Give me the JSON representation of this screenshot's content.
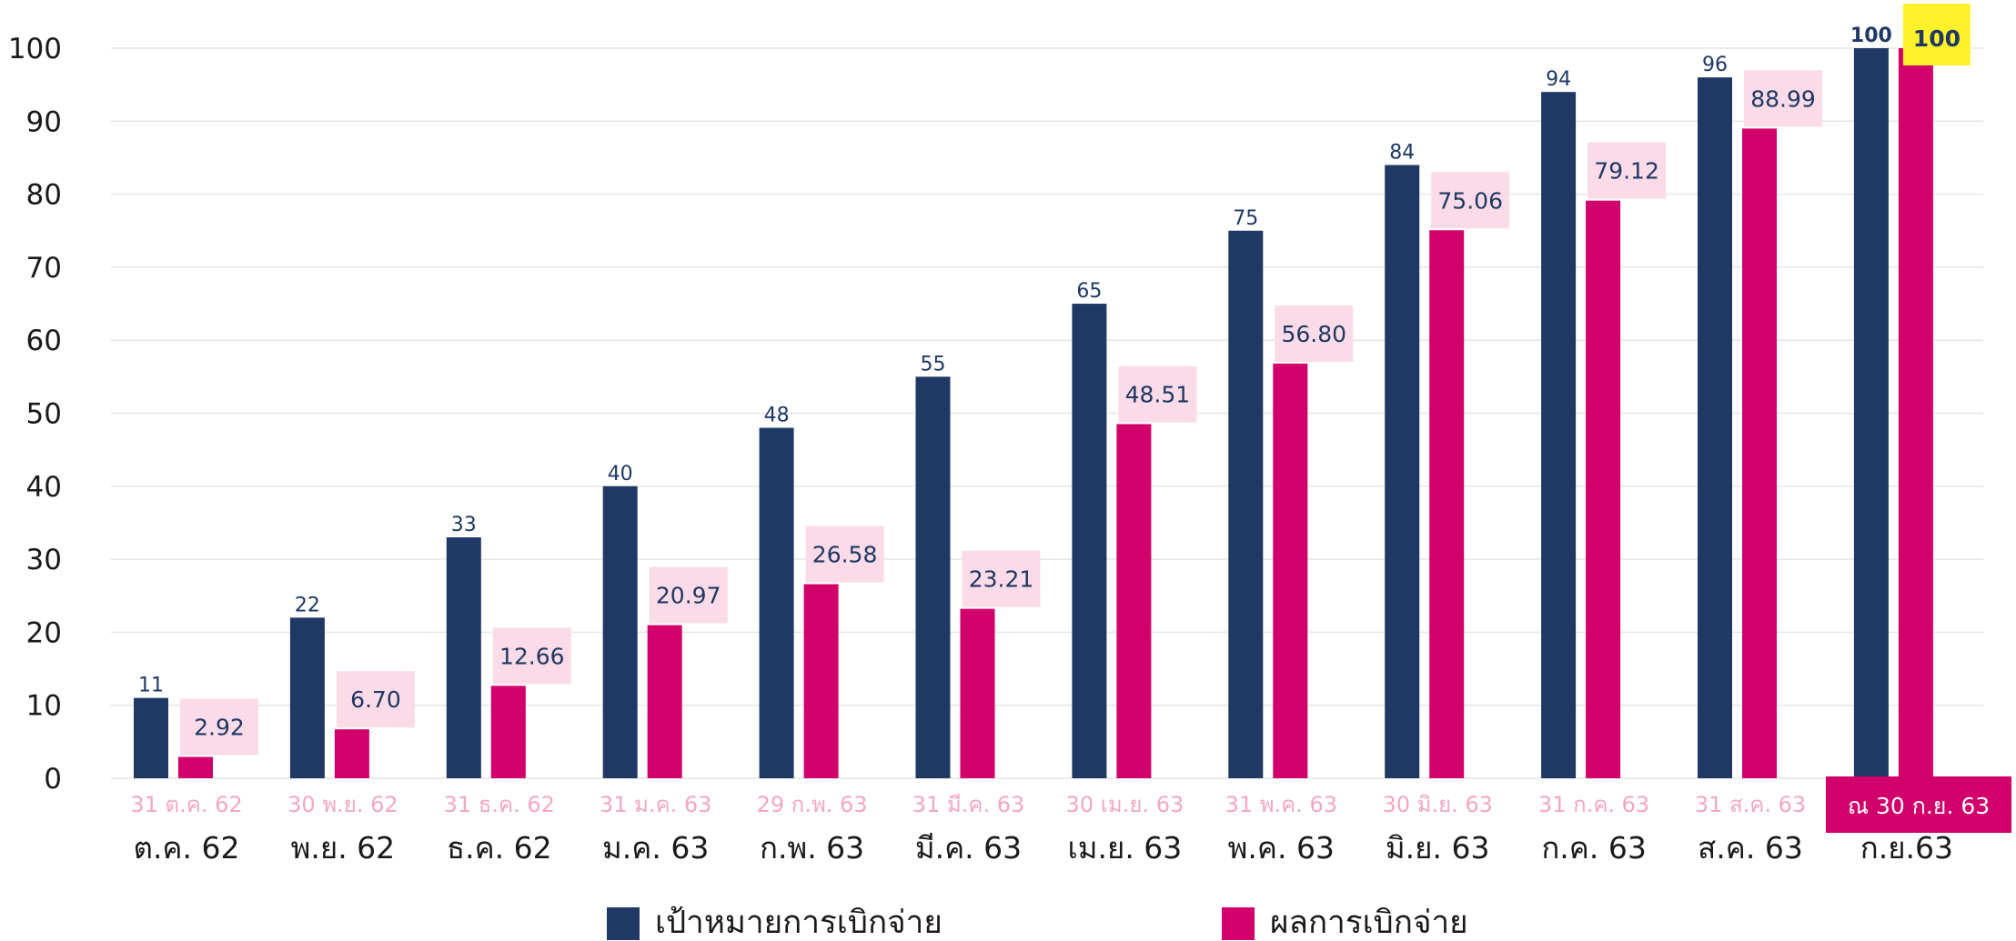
{
  "chart_data": {
    "type": "bar",
    "ylim": [
      0,
      100
    ],
    "yticks": [
      "0",
      "10",
      "20",
      "30",
      "40",
      "50",
      "60",
      "70",
      "80",
      "90",
      "100"
    ],
    "grid": true,
    "legend_position": "bottom",
    "categories": [
      "ต.ค. 62",
      "พ.ย. 62",
      "ธ.ค. 62",
      "ม.ค. 63",
      "ก.พ. 63",
      "มี.ค. 63",
      "เม.ย. 63",
      "พ.ค. 63",
      "มิ.ย. 63",
      "ก.ค. 63",
      "ส.ค. 63",
      "ก.ย.63"
    ],
    "date_labels": [
      "31 ต.ค. 62",
      "30 พ.ย. 62",
      "31 ธ.ค. 62",
      "31 ม.ค. 63",
      "29 ก.พ. 63",
      "31 มี.ค. 63",
      "30 เม.ย. 63",
      "31  พ.ค. 63",
      "30 มิ.ย. 63",
      "31 ก.ค. 63",
      "31 ส.ค. 63",
      "ณ 30 ก.ย. 63"
    ],
    "series": [
      {
        "name": "เป้าหมายการเบิกจ่าย",
        "color": "#1f3864",
        "values": [
          11,
          22,
          33,
          40,
          48,
          55,
          65,
          75,
          84,
          94,
          96,
          100
        ],
        "labels": [
          "11",
          "22",
          "33",
          "40",
          "48",
          "55",
          "65",
          "75",
          "84",
          "94",
          "96",
          "100"
        ]
      },
      {
        "name": "ผลการเบิกจ่าย",
        "color": "#d1006a",
        "values": [
          2.92,
          6.7,
          12.66,
          20.97,
          26.58,
          23.21,
          48.51,
          56.8,
          75.06,
          79.12,
          88.99,
          100
        ],
        "labels": [
          "2.92",
          "6.70",
          "12.66",
          "20.97",
          "26.58",
          "23.21",
          "48.51",
          "56.80",
          "75.06",
          "79.12",
          "88.99",
          "100"
        ]
      }
    ],
    "colors": {
      "label_box": "#fadbe7",
      "highlight_box": "#fff22a",
      "last_date_box": "#d1006a",
      "date_label": "#f4a7c1",
      "grid": "#e6e6e6"
    }
  }
}
